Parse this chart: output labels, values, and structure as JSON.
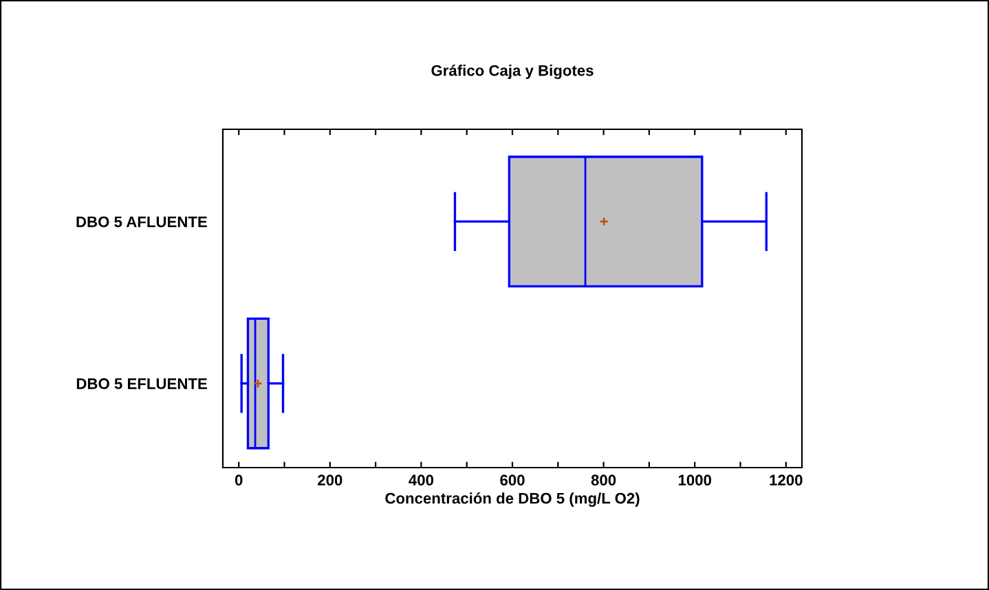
{
  "chart_data": {
    "type": "box",
    "title": "Gráfico Caja y Bigotes",
    "xlabel": "Concentración de DBO 5 (mg/L O2)",
    "orientation": "horizontal",
    "categories": [
      "DBO 5 AFLUENTE",
      "DBO 5 EFLUENTE"
    ],
    "boxes": [
      {
        "low": 474,
        "q1": 593,
        "median": 760,
        "q3": 1016,
        "high": 1157,
        "mean": 801
      },
      {
        "low": 6,
        "q1": 20,
        "median": 36,
        "q3": 65,
        "high": 97,
        "mean": 42
      }
    ],
    "color": "#c0c0c0",
    "xlim": [
      -35,
      1235
    ],
    "xticks": [
      0,
      {
        "value": 100,
        "label": null
      },
      200,
      {
        "value": 300,
        "label": null
      },
      400,
      {
        "value": 500,
        "label": null
      },
      600,
      {
        "value": 700,
        "label": null
      },
      800,
      {
        "value": 900,
        "label": null
      },
      1000,
      {
        "value": 1100,
        "label": null
      },
      1200
    ],
    "grid": false,
    "legend": false
  }
}
